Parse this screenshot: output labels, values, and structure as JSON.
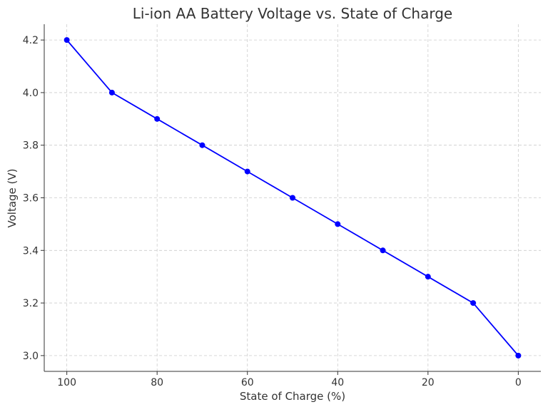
{
  "chart_data": {
    "type": "line",
    "title": "Li-ion AA Battery Voltage vs. State of Charge",
    "xlabel": "State of Charge (%)",
    "ylabel": "Voltage (V)",
    "x": [
      100,
      90,
      80,
      70,
      60,
      50,
      40,
      30,
      20,
      10,
      0
    ],
    "series": [
      {
        "values": [
          4.2,
          4.0,
          3.9,
          3.8,
          3.7,
          3.6,
          3.5,
          3.4,
          3.3,
          3.2,
          3.0
        ],
        "color": "#0000ff",
        "marker": "circle"
      }
    ],
    "xlim": [
      105,
      -5
    ],
    "ylim": [
      2.94,
      4.26
    ],
    "x_reversed": true,
    "xticks": [
      100,
      80,
      60,
      40,
      20,
      0
    ],
    "yticks": [
      3.0,
      3.2,
      3.4,
      3.6,
      3.8,
      4.0,
      4.2
    ],
    "xtick_labels": [
      "100",
      "80",
      "60",
      "40",
      "20",
      "0"
    ],
    "ytick_labels": [
      "3.0",
      "3.2",
      "3.4",
      "3.6",
      "3.8",
      "4.0",
      "4.2"
    ],
    "grid": true,
    "grid_style": "dashed"
  }
}
